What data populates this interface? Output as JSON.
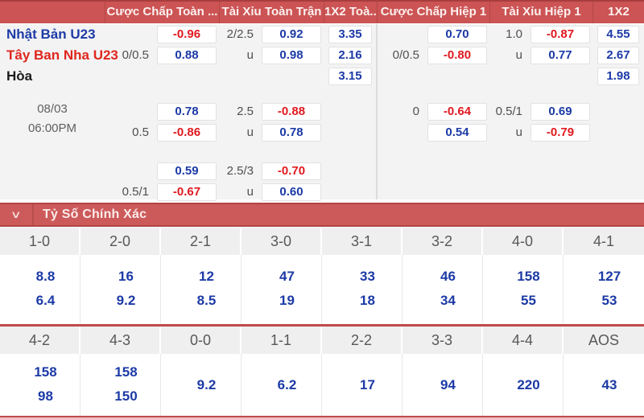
{
  "odds_table": {
    "column_headers": [
      "Cược Chấp Toàn ...",
      "Tài Xỉu Toàn Trận",
      "1X2 Toà...",
      "Cược Chấp Hiệp 1",
      "Tài Xỉu Hiệp 1",
      "1X2"
    ],
    "teams": {
      "home": "Nhật Bản U23",
      "away": "Tây Ban Nha U23",
      "draw_label": "Hòa"
    },
    "match_time": {
      "date": "08/03",
      "time": "06:00PM"
    },
    "cc_full": {
      "r1": {
        "odds": "-0.96"
      },
      "r2": {
        "handicap": "0/0.5",
        "odds": "0.88"
      },
      "r4": {
        "odds": "0.78"
      },
      "r5": {
        "handicap": "0.5",
        "odds": "-0.86"
      },
      "r6": {
        "odds": "0.59"
      },
      "r7": {
        "handicap": "0.5/1",
        "odds": "-0.67"
      }
    },
    "ou_full": {
      "r1": {
        "handicap": "2/2.5",
        "odds": "0.92"
      },
      "r2": {
        "handicap": "u",
        "odds": "0.98"
      },
      "r4": {
        "handicap": "2.5",
        "odds": "-0.88"
      },
      "r5": {
        "handicap": "u",
        "odds": "0.78"
      },
      "r6": {
        "handicap": "2.5/3",
        "odds": "-0.70"
      },
      "r7": {
        "handicap": "u",
        "odds": "0.60"
      }
    },
    "x12_full": {
      "r1": "3.35",
      "r2": "2.16",
      "r3": "3.15"
    },
    "cc_h1": {
      "r1": {
        "odds": "0.70"
      },
      "r2": {
        "handicap": "0/0.5",
        "odds": "-0.80"
      },
      "r4": {
        "handicap": "0",
        "odds": "-0.64"
      },
      "r5": {
        "odds": "0.54"
      }
    },
    "ou_h1": {
      "r1": {
        "handicap": "1.0",
        "odds": "-0.87"
      },
      "r2": {
        "handicap": "u",
        "odds": "0.77"
      },
      "r4": {
        "handicap": "0.5/1",
        "odds": "0.69"
      },
      "r5": {
        "handicap": "u",
        "odds": "-0.79"
      }
    },
    "x12_h1": {
      "r1": "4.55",
      "r2": "2.67",
      "r3": "1.98"
    }
  },
  "correct_score": {
    "title": "Tỷ Số Chính Xác",
    "row1": [
      {
        "score": "1-0",
        "odds": [
          "8.8",
          "6.4"
        ]
      },
      {
        "score": "2-0",
        "odds": [
          "16",
          "9.2"
        ]
      },
      {
        "score": "2-1",
        "odds": [
          "12",
          "8.5"
        ]
      },
      {
        "score": "3-0",
        "odds": [
          "47",
          "19"
        ]
      },
      {
        "score": "3-1",
        "odds": [
          "33",
          "18"
        ]
      },
      {
        "score": "3-2",
        "odds": [
          "46",
          "34"
        ]
      },
      {
        "score": "4-0",
        "odds": [
          "158",
          "55"
        ]
      },
      {
        "score": "4-1",
        "odds": [
          "127",
          "53"
        ]
      }
    ],
    "row2": [
      {
        "score": "4-2",
        "odds": [
          "158",
          "98"
        ]
      },
      {
        "score": "4-3",
        "odds": [
          "158",
          "150"
        ]
      },
      {
        "score": "0-0",
        "odds": [
          "9.2"
        ]
      },
      {
        "score": "1-1",
        "odds": [
          "6.2"
        ]
      },
      {
        "score": "2-2",
        "odds": [
          "17"
        ]
      },
      {
        "score": "3-3",
        "odds": [
          "94"
        ]
      },
      {
        "score": "4-4",
        "odds": [
          "220"
        ]
      },
      {
        "score": "AOS",
        "odds": [
          "43"
        ]
      }
    ]
  },
  "icons": {
    "chevron_down": "∨"
  },
  "colors": {
    "header_red": "#cc5454",
    "header_border_red": "#a93d3d",
    "section_bar_red": "#cd5a5a",
    "separator_red": "#c04b4b",
    "odds_blue": "#1c3aa6",
    "odds_red": "#e0191f",
    "team_home_blue": "#1e3ba6",
    "team_away_red": "#e0261d",
    "handicap_grey": "#4f4f4f",
    "panel_bg": "#f3f3f4"
  }
}
